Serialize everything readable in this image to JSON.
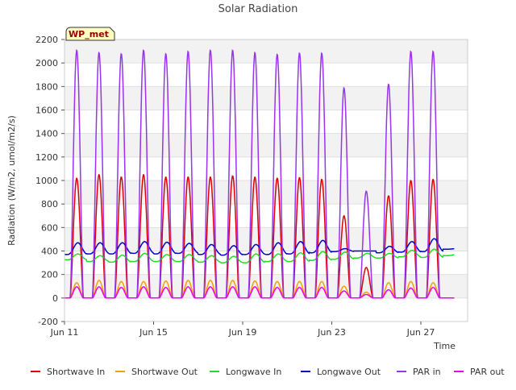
{
  "chart_data": {
    "type": "line",
    "title": "Solar Radiation",
    "xlabel": "Time",
    "ylabel": "Radiation (W/m2, umol/m2/s)",
    "ylim": [
      -200,
      2200
    ],
    "yticks": [
      -200,
      0,
      200,
      400,
      600,
      800,
      1000,
      1200,
      1400,
      1600,
      1800,
      2000,
      2200
    ],
    "xlim_days": [
      11,
      29.1
    ],
    "xticks": [
      {
        "day": 11,
        "label": "Jun 11"
      },
      {
        "day": 15,
        "label": "Jun 15"
      },
      {
        "day": 19,
        "label": "Jun 19"
      },
      {
        "day": 23,
        "label": "Jun 23"
      },
      {
        "day": 27,
        "label": "Jun 27"
      }
    ],
    "station_label": "WP_met",
    "grid": "horizontal bands",
    "legend_position": "bottom",
    "days": [
      11.3,
      12.3,
      13.3,
      14.3,
      15.3,
      16.3,
      17.3,
      18.3,
      19.3,
      20.3,
      21.3,
      22.3,
      23.3,
      24.3,
      25.3,
      26.3,
      27.3,
      28.3
    ],
    "series": [
      {
        "name": "Shortwave In",
        "color": "#dd0000",
        "kind": "diurnal",
        "peaks": [
          1020,
          1050,
          1030,
          1050,
          1030,
          1030,
          1030,
          1040,
          1030,
          1020,
          1025,
          1010,
          700,
          260,
          870,
          1000,
          1010,
          0
        ],
        "base": 0
      },
      {
        "name": "Shortwave Out",
        "color": "#f5a000",
        "kind": "diurnal",
        "peaks": [
          130,
          150,
          140,
          140,
          145,
          150,
          150,
          150,
          145,
          140,
          140,
          140,
          100,
          50,
          130,
          140,
          130,
          0
        ],
        "base": 0
      },
      {
        "name": "Longwave In",
        "color": "#22dd22",
        "kind": "cycle",
        "peaks": [
          375,
          360,
          365,
          380,
          370,
          370,
          360,
          355,
          375,
          375,
          385,
          395,
          390,
          380,
          380,
          405,
          415,
          370
        ],
        "mins": [
          325,
          310,
          305,
          310,
          310,
          310,
          305,
          300,
          300,
          310,
          310,
          320,
          330,
          340,
          340,
          350,
          345,
          360
        ]
      },
      {
        "name": "Longwave Out",
        "color": "#0000cc",
        "kind": "cycle",
        "peaks": [
          470,
          470,
          470,
          480,
          475,
          465,
          455,
          445,
          455,
          470,
          480,
          490,
          420,
          400,
          440,
          480,
          505,
          420
        ],
        "mins": [
          370,
          375,
          375,
          380,
          375,
          380,
          370,
          365,
          370,
          370,
          375,
          385,
          395,
          400,
          385,
          390,
          395,
          415
        ]
      },
      {
        "name": "PAR in",
        "color": "#9933ee",
        "kind": "diurnal",
        "peaks": [
          2110,
          2090,
          2080,
          2110,
          2080,
          2100,
          2110,
          2110,
          2090,
          2075,
          2085,
          2085,
          1790,
          910,
          1820,
          2100,
          2100,
          0
        ],
        "base": 0
      },
      {
        "name": "PAR out",
        "color": "#ee00ee",
        "kind": "diurnal",
        "peaks": [
          95,
          95,
          90,
          95,
          90,
          95,
          95,
          95,
          95,
          90,
          90,
          90,
          60,
          30,
          70,
          85,
          90,
          0
        ],
        "base": 0
      }
    ]
  }
}
